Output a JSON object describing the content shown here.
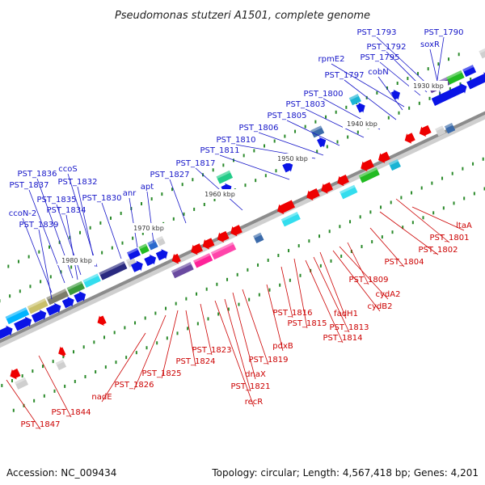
{
  "title": "Pseudomonas stutzeri A1501, complete genome",
  "footer": {
    "accession": "Accession: NC_009434",
    "summary": "Topology: circular; Length: 4,567,418 bp; Genes: 4,201"
  },
  "colors": {
    "forward_label": "#1515c8",
    "reverse_label": "#cc0000",
    "forward_gene": "#0a14e6",
    "reverse_gene": "#ee0000",
    "backbone": "#9a9a9a",
    "tick": "#2a8a2a"
  },
  "scale_labels": [
    "1930 kbp",
    "1940 kbp",
    "1950 kbp",
    "1960 kbp",
    "1970 kbp",
    "1980 kbp"
  ],
  "forward_labels": [
    "PST_1790",
    "PST_1793",
    "soxR",
    "PST_1792",
    "PST_1795",
    "rpmE2",
    "cobN",
    "PST_1797",
    "PST_1800",
    "PST_1803",
    "PST_1805",
    "PST_1806",
    "PST_1810",
    "PST_1811",
    "PST_1817",
    "PST_1827",
    "apt",
    "anr",
    "PST_1830",
    "ccoS",
    "PST_1832",
    "PST_1836",
    "PST_1837",
    "PST_1835",
    "PST_1834",
    "ccoN-2",
    "PST_1839"
  ],
  "reverse_labels": [
    "ltaA",
    "PST_1801",
    "PST_1802",
    "PST_1804",
    "PST_1809",
    "cydA2",
    "cydB2",
    "fadH1",
    "PST_1813",
    "PST_1814",
    "PST_1815",
    "PST_1816",
    "pdxB",
    "PST_1819",
    "dnaX",
    "PST_1821",
    "recR",
    "PST_1823",
    "PST_1824",
    "PST_1825",
    "PST_1826",
    "nadE",
    "PST_1844",
    "PST_1847"
  ]
}
